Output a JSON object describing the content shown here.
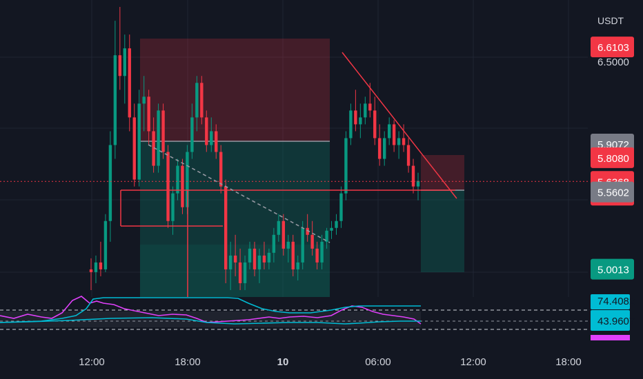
{
  "chart_data": {
    "type": "candlestick",
    "currency_label": "USDT",
    "y_axis": {
      "range": [
        4.8,
        6.95
      ],
      "tick_labels": [
        {
          "value": 6.5,
          "text": "6.5000"
        }
      ]
    },
    "x_axis": {
      "tick_labels": [
        {
          "text": "12:00",
          "bold": false
        },
        {
          "text": "18:00",
          "bold": false
        },
        {
          "text": "10",
          "bold": true
        },
        {
          "text": "06:00",
          "bold": false
        },
        {
          "text": "12:00",
          "bold": false
        },
        {
          "text": "18:00",
          "bold": false
        }
      ]
    },
    "grid": true,
    "price_tags": [
      {
        "value": 6.6103,
        "text": "6.6103",
        "bg": "#f23645",
        "fg": "#ffffff"
      },
      {
        "value": 5.9072,
        "text": "5.9072",
        "bg": "#787b86",
        "fg": "#ffffff"
      },
      {
        "value": 5.808,
        "text": "5.8080",
        "bg": "#f23645",
        "fg": "#ffffff"
      },
      {
        "value": 5.6368,
        "text": "5.6368",
        "sub": "08:03",
        "bg": "#f23645",
        "fg": "#ffffff"
      },
      {
        "value": 5.5602,
        "text": "5.5602",
        "bg": "#787b86",
        "fg": "#ffffff"
      },
      {
        "value": 5.0013,
        "text": "5.0013",
        "bg": "#089981",
        "fg": "#ffffff"
      }
    ],
    "last_price": 5.6368,
    "candles": [
      [
        5.0,
        5.08,
        4.85,
        4.98
      ],
      [
        4.98,
        5.1,
        4.9,
        5.05
      ],
      [
        5.05,
        5.2,
        4.95,
        5.0
      ],
      [
        5.0,
        5.4,
        4.98,
        5.35
      ],
      [
        5.35,
        6.0,
        5.2,
        5.9
      ],
      [
        5.9,
        6.8,
        5.8,
        6.55
      ],
      [
        6.55,
        6.9,
        6.3,
        6.4
      ],
      [
        6.4,
        6.7,
        6.2,
        6.6
      ],
      [
        6.6,
        6.7,
        6.0,
        6.1
      ],
      [
        6.1,
        6.2,
        5.6,
        5.65
      ],
      [
        5.65,
        6.3,
        5.6,
        6.2
      ],
      [
        6.2,
        6.4,
        6.0,
        6.25
      ],
      [
        6.25,
        6.3,
        5.9,
        6.0
      ],
      [
        6.0,
        6.1,
        5.7,
        5.75
      ],
      [
        5.75,
        6.2,
        5.7,
        6.15
      ],
      [
        6.15,
        6.2,
        5.8,
        5.85
      ],
      [
        5.85,
        5.9,
        5.3,
        5.35
      ],
      [
        5.35,
        5.6,
        5.25,
        5.55
      ],
      [
        5.55,
        5.8,
        5.5,
        5.75
      ],
      [
        5.75,
        5.8,
        5.4,
        5.45
      ],
      [
        5.45,
        5.9,
        5.4,
        5.85
      ],
      [
        5.85,
        6.2,
        5.8,
        6.1
      ],
      [
        6.1,
        6.4,
        6.0,
        6.35
      ],
      [
        6.35,
        6.4,
        6.05,
        6.1
      ],
      [
        6.1,
        6.15,
        5.85,
        5.9
      ],
      [
        5.9,
        6.1,
        5.85,
        6.0
      ],
      [
        6.0,
        6.05,
        5.8,
        5.85
      ],
      [
        5.85,
        5.9,
        5.55,
        5.6
      ],
      [
        5.6,
        5.65,
        4.9,
        5.0
      ],
      [
        5.0,
        5.2,
        4.85,
        5.1
      ],
      [
        5.1,
        5.25,
        4.95,
        5.05
      ],
      [
        5.05,
        5.15,
        4.85,
        4.9
      ],
      [
        4.9,
        5.1,
        4.85,
        5.05
      ],
      [
        5.05,
        5.2,
        5.0,
        5.15
      ],
      [
        5.15,
        5.2,
        4.95,
        5.0
      ],
      [
        5.0,
        5.15,
        4.9,
        5.1
      ],
      [
        5.1,
        5.2,
        5.0,
        5.05
      ],
      [
        5.05,
        5.15,
        5.0,
        5.12
      ],
      [
        5.12,
        5.3,
        5.05,
        5.25
      ],
      [
        5.25,
        5.4,
        5.2,
        5.35
      ],
      [
        5.35,
        5.4,
        5.1,
        5.15
      ],
      [
        5.15,
        5.25,
        5.05,
        5.2
      ],
      [
        5.2,
        5.25,
        4.95,
        5.0
      ],
      [
        5.0,
        5.1,
        4.92,
        5.05
      ],
      [
        5.05,
        5.35,
        5.0,
        5.3
      ],
      [
        5.3,
        5.4,
        5.2,
        5.25
      ],
      [
        5.25,
        5.35,
        5.1,
        5.15
      ],
      [
        5.15,
        5.2,
        5.0,
        5.05
      ],
      [
        5.05,
        5.25,
        5.0,
        5.2
      ],
      [
        5.2,
        5.3,
        5.15,
        5.28
      ],
      [
        5.28,
        5.35,
        5.22,
        5.3
      ],
      [
        5.3,
        5.4,
        5.25,
        5.35
      ],
      [
        5.35,
        5.6,
        5.3,
        5.55
      ],
      [
        5.55,
        6.0,
        5.5,
        5.95
      ],
      [
        5.95,
        6.2,
        5.9,
        6.15
      ],
      [
        6.15,
        6.3,
        6.0,
        6.05
      ],
      [
        6.05,
        6.2,
        5.95,
        6.1
      ],
      [
        6.1,
        6.25,
        6.05,
        6.2
      ],
      [
        6.2,
        6.35,
        6.1,
        6.15
      ],
      [
        6.15,
        6.25,
        5.9,
        5.95
      ],
      [
        5.95,
        6.05,
        5.75,
        5.8
      ],
      [
        5.8,
        6.0,
        5.75,
        5.95
      ],
      [
        5.95,
        6.1,
        5.9,
        6.05
      ],
      [
        6.05,
        6.08,
        5.85,
        5.9
      ],
      [
        5.9,
        6.0,
        5.8,
        5.95
      ],
      [
        5.95,
        6.05,
        5.85,
        5.9
      ],
      [
        5.9,
        5.95,
        5.7,
        5.75
      ],
      [
        5.75,
        5.8,
        5.55,
        5.6
      ],
      [
        5.6,
        5.7,
        5.5,
        5.64
      ]
    ],
    "indicator": {
      "tag_values": [
        {
          "value": 74.4082,
          "text": "74.4082",
          "bg": "#00bcd4",
          "fg": "#131722"
        },
        {
          "value": 43.9607,
          "text": "43.9607",
          "bg": "#00bcd4",
          "fg": "#131722"
        }
      ]
    }
  }
}
